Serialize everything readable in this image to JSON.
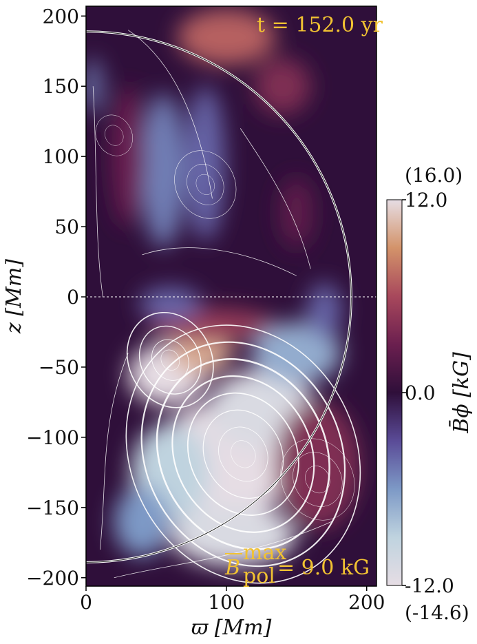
{
  "chart_data": {
    "type": "heatmap",
    "title": "",
    "time_annotation": "t = 152.0 yr",
    "bpol_annotation": {
      "symbol": "B",
      "sup": "max",
      "sub": "pol",
      "value_text": "= 9.0 kG"
    },
    "xlabel": "ϖ [Mm]",
    "ylabel": "z [Mm]",
    "xlim": [
      0,
      207
    ],
    "ylim": [
      -206,
      207
    ],
    "x_ticks": [
      0,
      100,
      200
    ],
    "x_tick_labels": [
      "0",
      "100",
      "200"
    ],
    "y_ticks": [
      200,
      150,
      100,
      50,
      0,
      -50,
      -100,
      -150,
      -200
    ],
    "y_tick_labels": [
      "200",
      "150",
      "100",
      "50",
      "0",
      "−50",
      "−100",
      "−150",
      "−200"
    ],
    "colorbar": {
      "label": "B̄ϕ [kG]",
      "range": [
        -12,
        12
      ],
      "tick_labels": [
        "12.0",
        "0.0",
        "-12.0"
      ],
      "max_note": "(16.0)",
      "min_note": "(-14.6)",
      "colormap_stops": [
        "#e6dde4",
        "#bfd3df",
        "#7d99c6",
        "#5a4b97",
        "#2f0f3a",
        "#6b1f4f",
        "#a8485c",
        "#d3936a",
        "#e6dde4"
      ]
    },
    "sphere_radius": 189,
    "field_blobs": [
      {
        "x": 58,
        "y": -55,
        "rx": 28,
        "ry": 22,
        "value": 14
      },
      {
        "x": 82,
        "y": -40,
        "rx": 22,
        "ry": 15,
        "value": 10
      },
      {
        "x": 90,
        "y": -20,
        "rx": 45,
        "ry": 12,
        "value": 5
      },
      {
        "x": 95,
        "y": -120,
        "rx": 48,
        "ry": 45,
        "value": -14
      },
      {
        "x": 125,
        "y": -80,
        "rx": 38,
        "ry": 28,
        "value": -11
      },
      {
        "x": 150,
        "y": -40,
        "rx": 32,
        "ry": 22,
        "value": -7
      },
      {
        "x": 170,
        "y": -10,
        "rx": 12,
        "ry": 20,
        "value": -4
      },
      {
        "x": 105,
        "y": -170,
        "rx": 45,
        "ry": 22,
        "value": -11
      },
      {
        "x": 60,
        "y": -125,
        "rx": 28,
        "ry": 35,
        "value": -9
      },
      {
        "x": 40,
        "y": -160,
        "rx": 20,
        "ry": 25,
        "value": -6
      },
      {
        "x": 100,
        "y": 185,
        "rx": 35,
        "ry": 20,
        "value": 7
      },
      {
        "x": 140,
        "y": 150,
        "rx": 20,
        "ry": 20,
        "value": 4
      },
      {
        "x": 165,
        "y": -120,
        "rx": 30,
        "ry": 45,
        "value": 4
      },
      {
        "x": 55,
        "y": 90,
        "rx": 15,
        "ry": 55,
        "value": -5
      },
      {
        "x": 85,
        "y": 95,
        "rx": 14,
        "ry": 55,
        "value": -4
      },
      {
        "x": 30,
        "y": 100,
        "rx": 12,
        "ry": 50,
        "value": 3
      },
      {
        "x": 60,
        "y": -5,
        "rx": 22,
        "ry": 12,
        "value": -4
      },
      {
        "x": 5,
        "y": 150,
        "rx": 6,
        "ry": 20,
        "value": -5
      },
      {
        "x": 150,
        "y": 60,
        "rx": 12,
        "ry": 25,
        "value": 2.5
      }
    ]
  }
}
